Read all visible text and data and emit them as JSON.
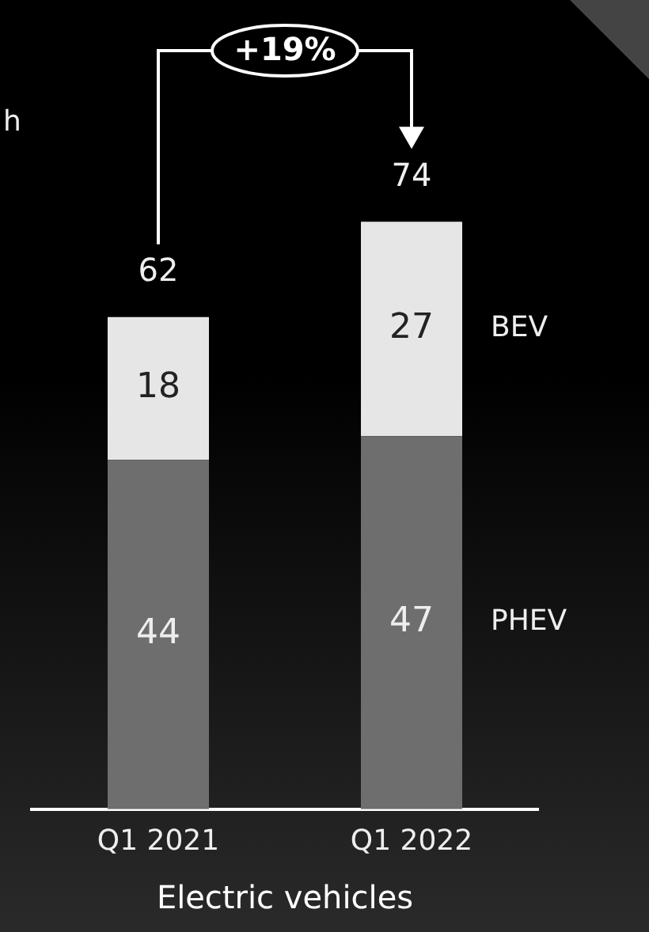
{
  "chart_data": {
    "type": "bar",
    "stacked": true,
    "categories": [
      "Q1 2021",
      "Q1 2022"
    ],
    "xlabel": "Electric vehicles",
    "series": [
      {
        "name": "PHEV",
        "color": "#6e6e6e",
        "values": [
          44,
          47
        ]
      },
      {
        "name": "BEV",
        "color": "#e6e6e6",
        "values": [
          18,
          27
        ]
      }
    ],
    "totals": [
      "62",
      "74"
    ],
    "data_labels": true,
    "tick_labels": "x",
    "annotations": [
      "+19%",
      "h"
    ]
  }
}
